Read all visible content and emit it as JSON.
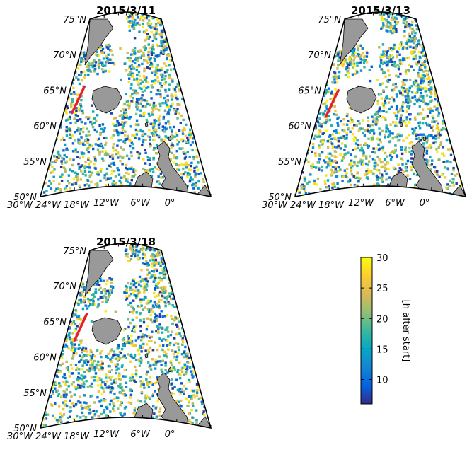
{
  "chart_data": [
    {
      "type": "scatter",
      "title": "2015/3/11",
      "lat_ticks": [
        "75°N",
        "70°N",
        "65°N",
        "60°N",
        "55°N",
        "50°N"
      ],
      "lon_ticks": [
        "30°W",
        "24°W",
        "18°W",
        "12°W",
        "6°W",
        "0°"
      ],
      "lon_range": [
        -30,
        5
      ],
      "lat_range": [
        50,
        75
      ],
      "track": {
        "color": "#e8202a",
        "lon": [
          -27.5,
          -25.5
        ],
        "lat": [
          61.5,
          65.0
        ]
      },
      "land_color": "#999999",
      "colormap": "parula",
      "value_range": [
        6,
        30
      ]
    },
    {
      "type": "scatter",
      "title": "2015/3/13",
      "lat_ticks": [
        "75°N",
        "70°N",
        "65°N",
        "60°N",
        "55°N",
        "50°N"
      ],
      "lon_ticks": [
        "30°W",
        "24°W",
        "18°W",
        "12°W",
        "6°W",
        "0°"
      ],
      "lon_range": [
        -30,
        5
      ],
      "lat_range": [
        50,
        75
      ],
      "track": {
        "color": "#e8202a",
        "lon": [
          -27.5,
          -25.5
        ],
        "lat": [
          61.0,
          64.5
        ]
      },
      "land_color": "#999999",
      "colormap": "parula",
      "value_range": [
        6,
        30
      ]
    },
    {
      "type": "scatter",
      "title": "2015/3/18",
      "lat_ticks": [
        "75°N",
        "70°N",
        "65°N",
        "60°N",
        "55°N",
        "50°N"
      ],
      "lon_ticks": [
        "30°W",
        "24°W",
        "18°W",
        "12°W",
        "6°W",
        "0°"
      ],
      "lon_range": [
        -30,
        5
      ],
      "lat_range": [
        50,
        75
      ],
      "track": {
        "color": "#e8202a",
        "lon": [
          -27.0,
          -25.0
        ],
        "lat": [
          62.0,
          65.5
        ]
      },
      "land_color": "#999999",
      "colormap": "parula",
      "value_range": [
        6,
        30
      ]
    }
  ],
  "colorbar": {
    "label": "[h after start]",
    "ticks": [
      {
        "value": 30,
        "label": "30"
      },
      {
        "value": 25,
        "label": "25"
      },
      {
        "value": 20,
        "label": "20"
      },
      {
        "value": 15,
        "label": "15"
      },
      {
        "value": 10,
        "label": "10"
      }
    ],
    "range": [
      6,
      30
    ],
    "colors": [
      "#352a87",
      "#0363e1",
      "#1485d4",
      "#06a7c6",
      "#38b99e",
      "#92bf73",
      "#d9ba56",
      "#fcce2e",
      "#f9fb0e"
    ]
  }
}
